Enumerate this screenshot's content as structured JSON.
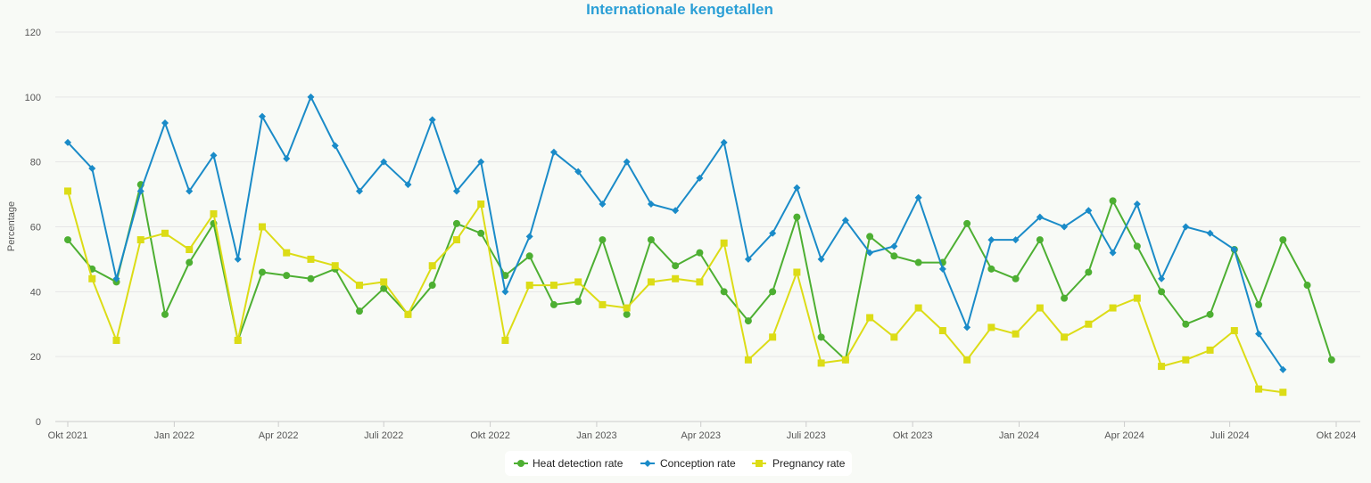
{
  "chart_data": {
    "type": "line",
    "title": "Internationale kengetallen",
    "ylabel": "Percentage",
    "xlabel": "",
    "ylim": [
      0,
      120
    ],
    "yticks": [
      0,
      20,
      40,
      60,
      80,
      100,
      120
    ],
    "grid": true,
    "legend_position": "bottom",
    "x_start": "2021-10",
    "x_end": "2024-10",
    "x_ticks": [
      {
        "label": "Okt 2021",
        "date": "2021-10"
      },
      {
        "label": "Jan 2022",
        "date": "2022-01"
      },
      {
        "label": "Apr 2022",
        "date": "2022-04"
      },
      {
        "label": "Juli 2022",
        "date": "2022-07"
      },
      {
        "label": "Okt 2022",
        "date": "2022-10"
      },
      {
        "label": "Jan 2023",
        "date": "2023-01"
      },
      {
        "label": "Apr 2023",
        "date": "2023-04"
      },
      {
        "label": "Juli 2023",
        "date": "2023-07"
      },
      {
        "label": "Okt 2023",
        "date": "2023-10"
      },
      {
        "label": "Jan 2024",
        "date": "2024-01"
      },
      {
        "label": "Apr 2024",
        "date": "2024-04"
      },
      {
        "label": "Juli 2024",
        "date": "2024-07"
      },
      {
        "label": "Okt 2024",
        "date": "2024-10"
      }
    ],
    "series": [
      {
        "name": "Heat detection rate",
        "color": "#4daf32",
        "marker": "circle",
        "points": [
          {
            "x": "2021-10-01",
            "y": 56
          },
          {
            "x": "2021-10-22",
            "y": 47
          },
          {
            "x": "2021-11-12",
            "y": 43
          },
          {
            "x": "2021-12-03",
            "y": 73
          },
          {
            "x": "2021-12-24",
            "y": 33
          },
          {
            "x": "2022-01-14",
            "y": 49
          },
          {
            "x": "2022-02-04",
            "y": 61
          },
          {
            "x": "2022-02-25",
            "y": 25
          },
          {
            "x": "2022-03-18",
            "y": 46
          },
          {
            "x": "2022-04-08",
            "y": 45
          },
          {
            "x": "2022-04-29",
            "y": 44
          },
          {
            "x": "2022-05-20",
            "y": 47
          },
          {
            "x": "2022-06-10",
            "y": 34
          },
          {
            "x": "2022-07-01",
            "y": 41
          },
          {
            "x": "2022-07-22",
            "y": 33
          },
          {
            "x": "2022-08-12",
            "y": 42
          },
          {
            "x": "2022-09-02",
            "y": 61
          },
          {
            "x": "2022-09-23",
            "y": 58
          },
          {
            "x": "2022-10-14",
            "y": 45
          },
          {
            "x": "2022-11-04",
            "y": 51
          },
          {
            "x": "2022-11-25",
            "y": 36
          },
          {
            "x": "2022-12-16",
            "y": 37
          },
          {
            "x": "2023-01-06",
            "y": 56
          },
          {
            "x": "2023-01-27",
            "y": 33
          },
          {
            "x": "2023-02-17",
            "y": 56
          },
          {
            "x": "2023-03-10",
            "y": 48
          },
          {
            "x": "2023-03-31",
            "y": 52
          },
          {
            "x": "2023-04-21",
            "y": 40
          },
          {
            "x": "2023-05-12",
            "y": 31
          },
          {
            "x": "2023-06-02",
            "y": 40
          },
          {
            "x": "2023-06-23",
            "y": 63
          },
          {
            "x": "2023-07-14",
            "y": 26
          },
          {
            "x": "2023-08-04",
            "y": 19
          },
          {
            "x": "2023-08-25",
            "y": 57
          },
          {
            "x": "2023-09-15",
            "y": 51
          },
          {
            "x": "2023-10-06",
            "y": 49
          },
          {
            "x": "2023-10-27",
            "y": 49
          },
          {
            "x": "2023-11-17",
            "y": 61
          },
          {
            "x": "2023-12-08",
            "y": 47
          },
          {
            "x": "2023-12-29",
            "y": 44
          },
          {
            "x": "2024-01-19",
            "y": 56
          },
          {
            "x": "2024-02-09",
            "y": 38
          },
          {
            "x": "2024-03-01",
            "y": 46
          },
          {
            "x": "2024-03-22",
            "y": 68
          },
          {
            "x": "2024-04-12",
            "y": 54
          },
          {
            "x": "2024-05-03",
            "y": 40
          },
          {
            "x": "2024-05-24",
            "y": 30
          },
          {
            "x": "2024-06-14",
            "y": 33
          },
          {
            "x": "2024-07-05",
            "y": 53
          },
          {
            "x": "2024-07-26",
            "y": 36
          },
          {
            "x": "2024-08-16",
            "y": 56
          },
          {
            "x": "2024-09-06",
            "y": 42
          },
          {
            "x": "2024-09-27",
            "y": 19
          }
        ]
      },
      {
        "name": "Conception rate",
        "color": "#1a8bc8",
        "marker": "diamond",
        "points": [
          {
            "x": "2021-10-01",
            "y": 86
          },
          {
            "x": "2021-10-22",
            "y": 78
          },
          {
            "x": "2021-11-12",
            "y": 44
          },
          {
            "x": "2021-12-03",
            "y": 71
          },
          {
            "x": "2021-12-24",
            "y": 92
          },
          {
            "x": "2022-01-14",
            "y": 71
          },
          {
            "x": "2022-02-04",
            "y": 82
          },
          {
            "x": "2022-02-25",
            "y": 50
          },
          {
            "x": "2022-03-18",
            "y": 94
          },
          {
            "x": "2022-04-08",
            "y": 81
          },
          {
            "x": "2022-04-29",
            "y": 100
          },
          {
            "x": "2022-05-20",
            "y": 85
          },
          {
            "x": "2022-06-10",
            "y": 71
          },
          {
            "x": "2022-07-01",
            "y": 80
          },
          {
            "x": "2022-07-22",
            "y": 73
          },
          {
            "x": "2022-08-12",
            "y": 93
          },
          {
            "x": "2022-09-02",
            "y": 71
          },
          {
            "x": "2022-09-23",
            "y": 80
          },
          {
            "x": "2022-10-14",
            "y": 40
          },
          {
            "x": "2022-11-04",
            "y": 57
          },
          {
            "x": "2022-11-25",
            "y": 83
          },
          {
            "x": "2022-12-16",
            "y": 77
          },
          {
            "x": "2023-01-06",
            "y": 67
          },
          {
            "x": "2023-01-27",
            "y": 80
          },
          {
            "x": "2023-02-17",
            "y": 67
          },
          {
            "x": "2023-03-10",
            "y": 65
          },
          {
            "x": "2023-03-31",
            "y": 75
          },
          {
            "x": "2023-04-21",
            "y": 86
          },
          {
            "x": "2023-05-12",
            "y": 50
          },
          {
            "x": "2023-06-02",
            "y": 58
          },
          {
            "x": "2023-06-23",
            "y": 72
          },
          {
            "x": "2023-07-14",
            "y": 50
          },
          {
            "x": "2023-08-04",
            "y": 62
          },
          {
            "x": "2023-08-25",
            "y": 52
          },
          {
            "x": "2023-09-15",
            "y": 54
          },
          {
            "x": "2023-10-06",
            "y": 69
          },
          {
            "x": "2023-10-27",
            "y": 47
          },
          {
            "x": "2023-11-17",
            "y": 29
          },
          {
            "x": "2023-12-08",
            "y": 56
          },
          {
            "x": "2023-12-29",
            "y": 56
          },
          {
            "x": "2024-01-19",
            "y": 63
          },
          {
            "x": "2024-02-09",
            "y": 60
          },
          {
            "x": "2024-03-01",
            "y": 65
          },
          {
            "x": "2024-03-22",
            "y": 52
          },
          {
            "x": "2024-04-12",
            "y": 67
          },
          {
            "x": "2024-05-03",
            "y": 44
          },
          {
            "x": "2024-05-24",
            "y": 60
          },
          {
            "x": "2024-06-14",
            "y": 58
          },
          {
            "x": "2024-07-05",
            "y": 53
          },
          {
            "x": "2024-07-26",
            "y": 27
          },
          {
            "x": "2024-08-16",
            "y": 16
          }
        ]
      },
      {
        "name": "Pregnancy rate",
        "color": "#dcdc16",
        "marker": "square",
        "points": [
          {
            "x": "2021-10-01",
            "y": 71
          },
          {
            "x": "2021-10-22",
            "y": 44
          },
          {
            "x": "2021-11-12",
            "y": 25
          },
          {
            "x": "2021-12-03",
            "y": 56
          },
          {
            "x": "2021-12-24",
            "y": 58
          },
          {
            "x": "2022-01-14",
            "y": 53
          },
          {
            "x": "2022-02-04",
            "y": 64
          },
          {
            "x": "2022-02-25",
            "y": 25
          },
          {
            "x": "2022-03-18",
            "y": 60
          },
          {
            "x": "2022-04-08",
            "y": 52
          },
          {
            "x": "2022-04-29",
            "y": 50
          },
          {
            "x": "2022-05-20",
            "y": 48
          },
          {
            "x": "2022-06-10",
            "y": 42
          },
          {
            "x": "2022-07-01",
            "y": 43
          },
          {
            "x": "2022-07-22",
            "y": 33
          },
          {
            "x": "2022-08-12",
            "y": 48
          },
          {
            "x": "2022-09-02",
            "y": 56
          },
          {
            "x": "2022-09-23",
            "y": 67
          },
          {
            "x": "2022-10-14",
            "y": 25
          },
          {
            "x": "2022-11-04",
            "y": 42
          },
          {
            "x": "2022-11-25",
            "y": 42
          },
          {
            "x": "2022-12-16",
            "y": 43
          },
          {
            "x": "2023-01-06",
            "y": 36
          },
          {
            "x": "2023-01-27",
            "y": 35
          },
          {
            "x": "2023-02-17",
            "y": 43
          },
          {
            "x": "2023-03-10",
            "y": 44
          },
          {
            "x": "2023-03-31",
            "y": 43
          },
          {
            "x": "2023-04-21",
            "y": 55
          },
          {
            "x": "2023-05-12",
            "y": 19
          },
          {
            "x": "2023-06-02",
            "y": 26
          },
          {
            "x": "2023-06-23",
            "y": 46
          },
          {
            "x": "2023-07-14",
            "y": 18
          },
          {
            "x": "2023-08-04",
            "y": 19
          },
          {
            "x": "2023-08-25",
            "y": 32
          },
          {
            "x": "2023-09-15",
            "y": 26
          },
          {
            "x": "2023-10-06",
            "y": 35
          },
          {
            "x": "2023-10-27",
            "y": 28
          },
          {
            "x": "2023-11-17",
            "y": 19
          },
          {
            "x": "2023-12-08",
            "y": 29
          },
          {
            "x": "2023-12-29",
            "y": 27
          },
          {
            "x": "2024-01-19",
            "y": 35
          },
          {
            "x": "2024-02-09",
            "y": 26
          },
          {
            "x": "2024-03-01",
            "y": 30
          },
          {
            "x": "2024-03-22",
            "y": 35
          },
          {
            "x": "2024-04-12",
            "y": 38
          },
          {
            "x": "2024-05-03",
            "y": 17
          },
          {
            "x": "2024-05-24",
            "y": 19
          },
          {
            "x": "2024-06-14",
            "y": 22
          },
          {
            "x": "2024-07-05",
            "y": 28
          },
          {
            "x": "2024-07-26",
            "y": 10
          },
          {
            "x": "2024-08-16",
            "y": 9
          }
        ]
      }
    ]
  }
}
